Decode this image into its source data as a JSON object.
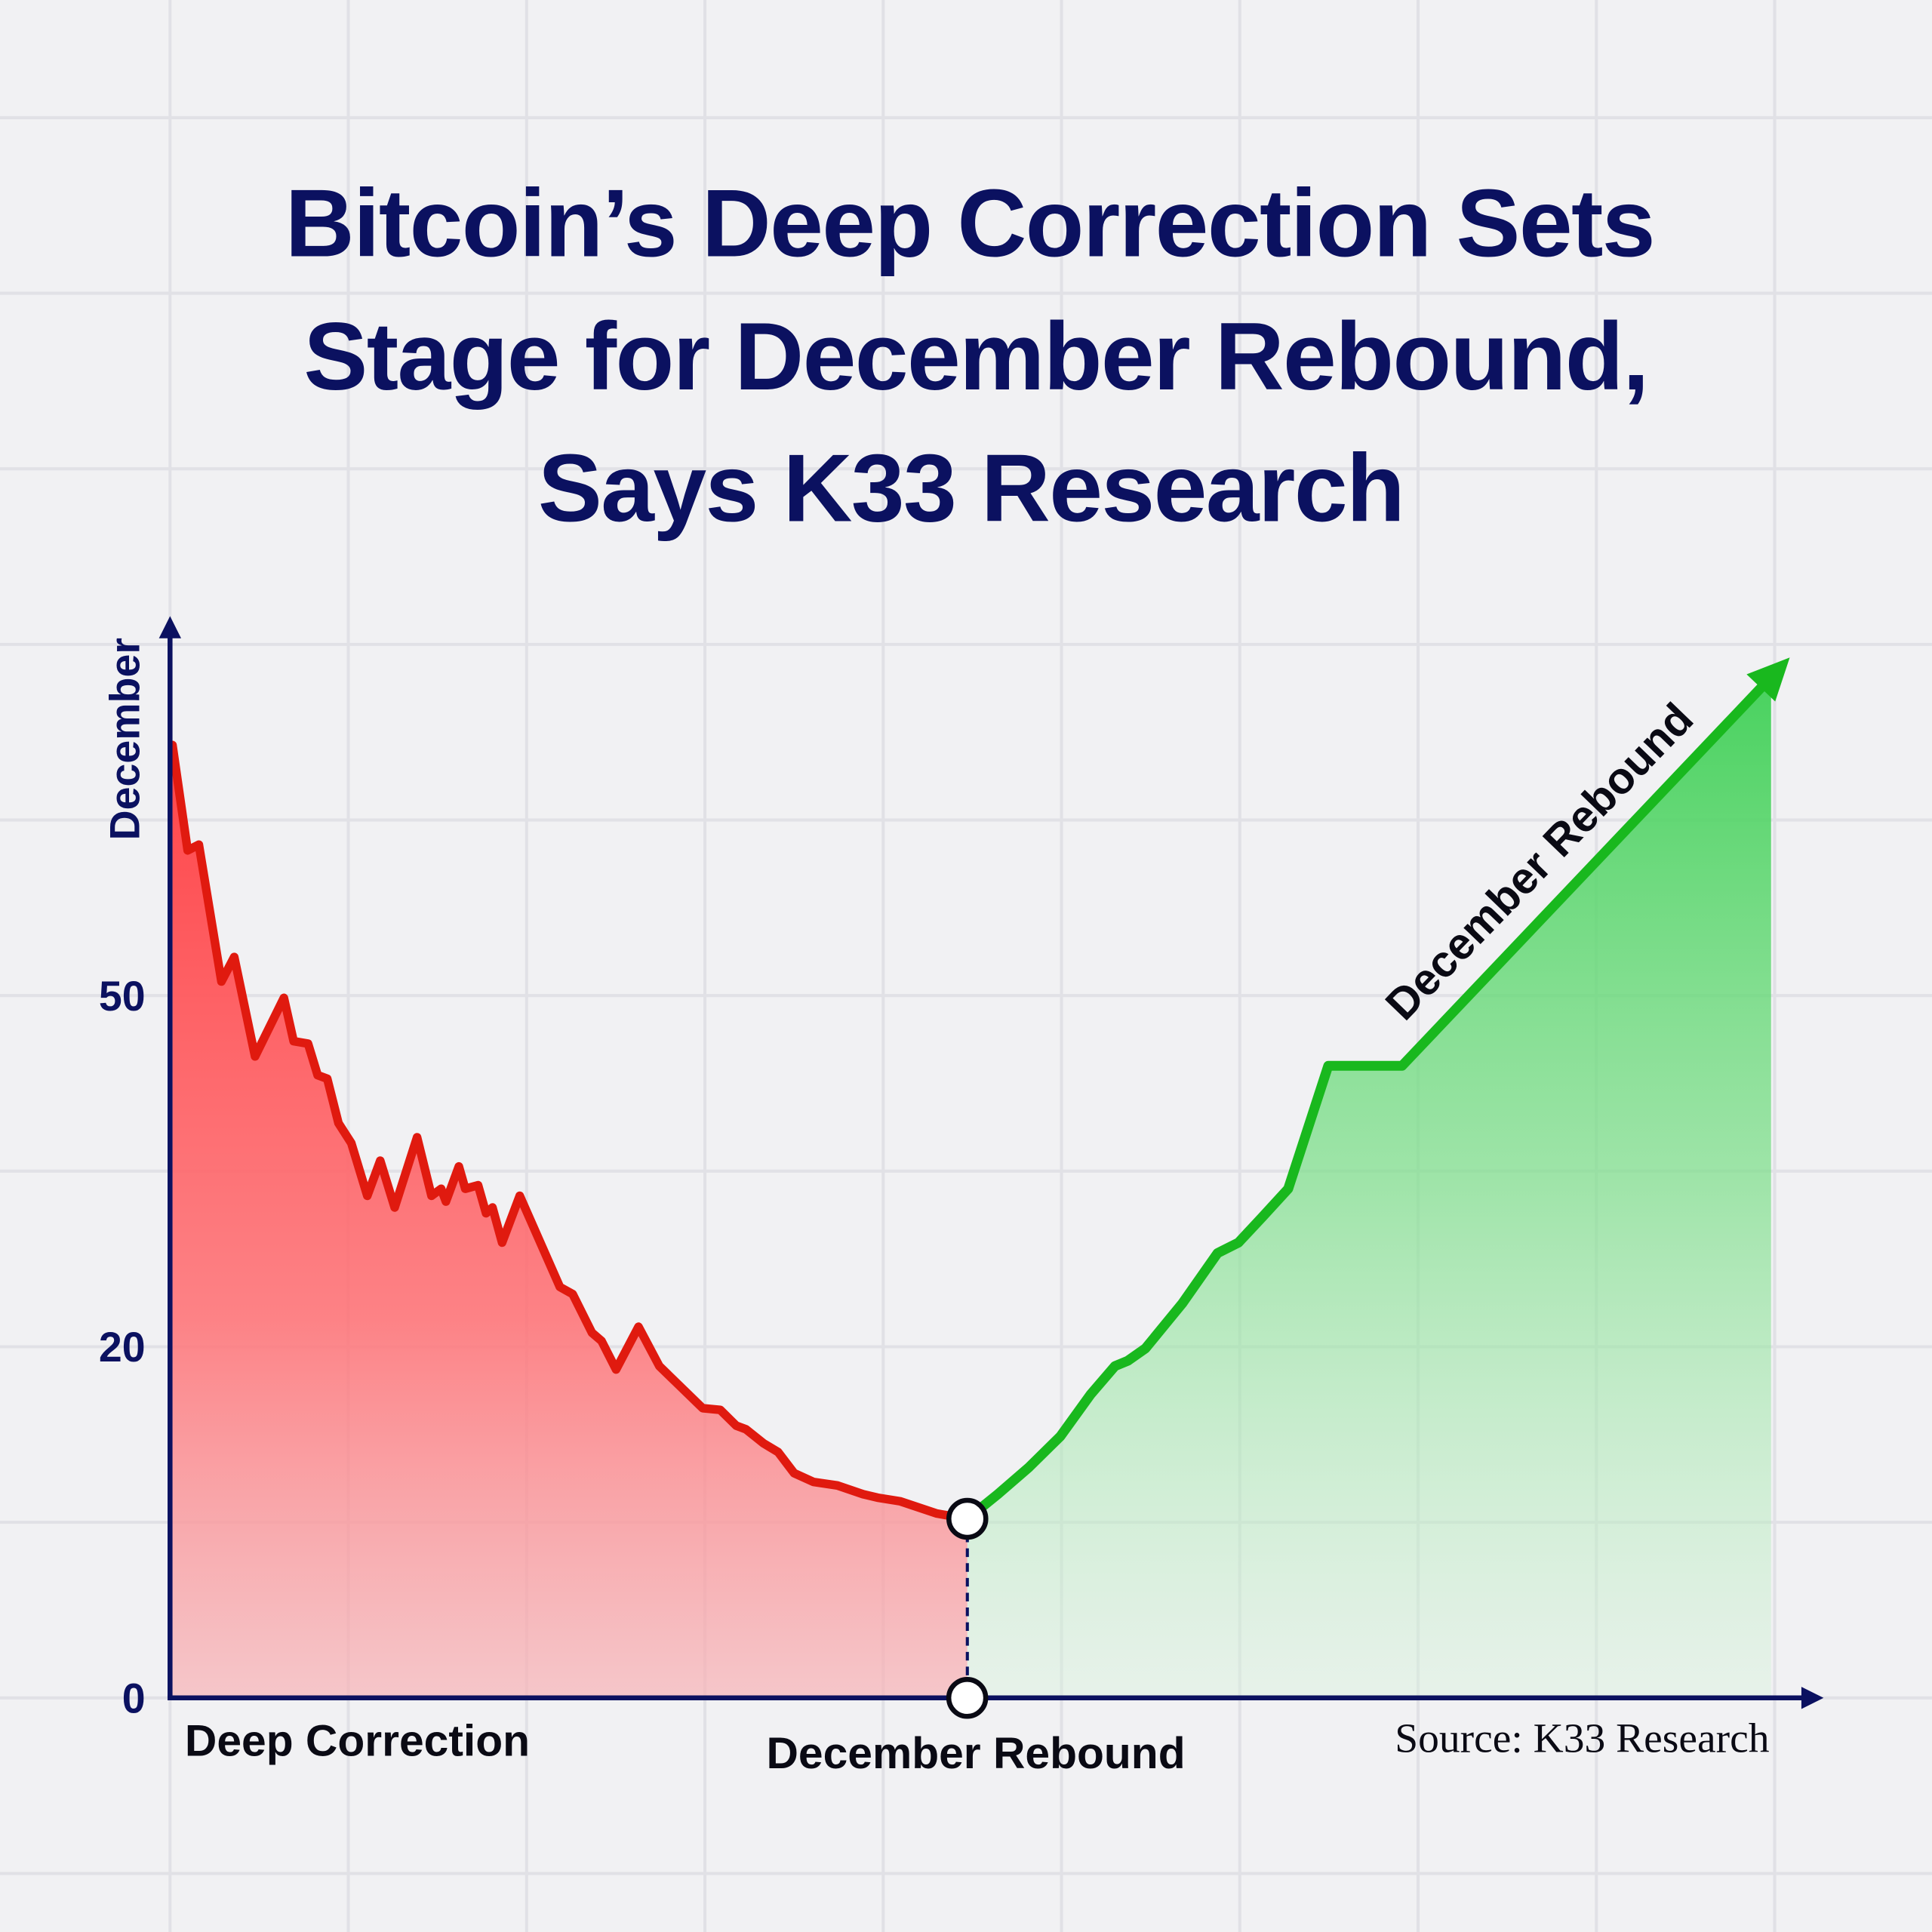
{
  "chart_data": {
    "type": "area",
    "title": [
      "Bitcoin’s Deep Correction Sets",
      "Stage for December Rebound,",
      "Says K33 Research"
    ],
    "ylabel": "December",
    "y_ticks": [
      "0",
      "20",
      "50"
    ],
    "y_tick_values": [
      0,
      20,
      50
    ],
    "ylim": [
      0,
      80
    ],
    "xlim": [
      0,
      100
    ],
    "grid": true,
    "x_labels": {
      "left": "Deep Correction",
      "center": "December Rebound"
    },
    "annotation": "December Rebound",
    "source": "Source: K33 Research",
    "colors": {
      "correction": "#e01a0f",
      "correction_fill": "#ff4b4f",
      "rebound": "#19b81e",
      "rebound_fill": "#5cd66a",
      "axis": "#0b1160",
      "title": "#0b1160"
    },
    "turning_point": {
      "x": 49.7,
      "y": 10.2
    },
    "series": [
      {
        "name": "Deep Correction",
        "x": [
          0.15,
          1.1,
          1.8,
          3.2,
          4.0,
          5.3,
          7.1,
          7.7,
          8.6,
          9.2,
          9.8,
          10.5,
          11.3,
          12.3,
          13.1,
          14.0,
          15.4,
          16.3,
          16.9,
          17.2,
          18.0,
          18.4,
          19.2,
          19.7,
          20.1,
          20.7,
          21.8,
          24.3,
          25.1,
          26.3,
          26.9,
          27.8,
          29.2,
          30.5,
          33.2,
          34.3,
          35.3,
          35.9,
          37.0,
          37.9,
          38.9,
          40.1,
          41.6,
          43.2,
          44.1,
          45.5,
          47.8,
          49.7
        ],
        "y": [
          71.4,
          62.4,
          62.9,
          51.2,
          53.3,
          44.8,
          49.8,
          46.1,
          45.9,
          43.2,
          42.9,
          39.1,
          37.4,
          32.9,
          35.9,
          31.9,
          37.9,
          32.9,
          33.5,
          32.4,
          35.4,
          33.5,
          33.8,
          31.4,
          31.9,
          28.9,
          32.9,
          25.1,
          24.5,
          21.2,
          20.5,
          18.7,
          21.7,
          18.9,
          16.5,
          16.4,
          15.5,
          15.3,
          14.5,
          14.0,
          12.8,
          12.3,
          12.1,
          11.6,
          11.4,
          11.2,
          10.5,
          10.2
        ]
      },
      {
        "name": "December Rebound",
        "x": [
          49.7,
          51.6,
          53.5,
          55.5,
          57.4,
          58.9,
          59.7,
          60.8,
          63.1,
          65.3,
          66.6,
          68.1,
          69.7,
          72.2,
          76.8,
          99.8
        ],
        "y": [
          10.2,
          11.6,
          13.1,
          14.9,
          17.3,
          18.9,
          19.2,
          19.9,
          23.7,
          28.0,
          28.9,
          31.1,
          33.5,
          44.0,
          44.0,
          77.2
        ]
      }
    ]
  }
}
